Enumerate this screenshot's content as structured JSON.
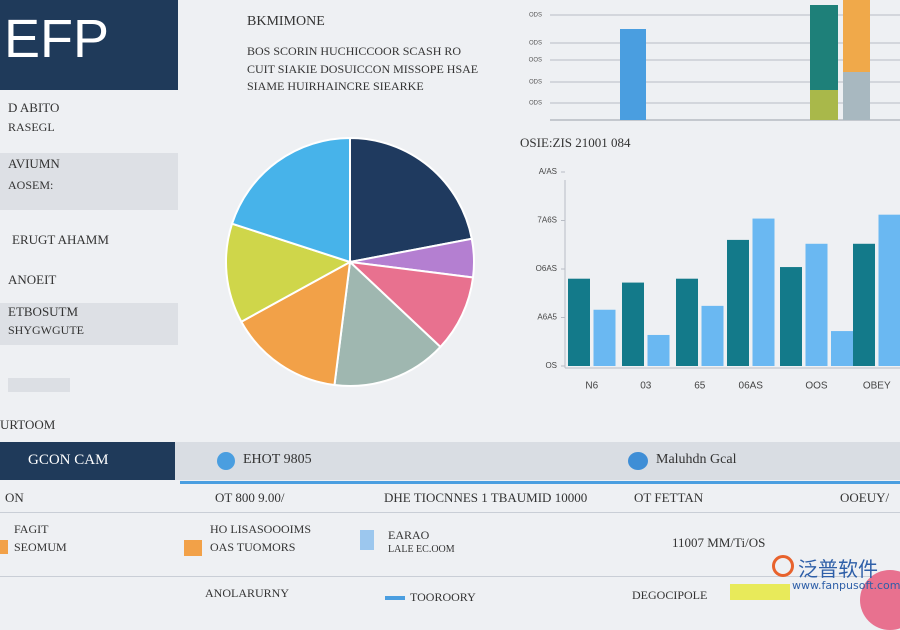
{
  "header": {
    "logo": "EFP",
    "heading": "BKMIMONE",
    "lines": [
      "BOS SCORIN HUCHICCOOR SCASH RO",
      "CUIT SIAKIE DOSUICCON MISSOPE HSAE",
      "SIAME HUIRHAINCRE SIEARKE"
    ]
  },
  "sidebar": {
    "items": [
      [
        "D ABITO",
        "RASEGL"
      ],
      [
        "AVIUMN",
        "AOSEM:"
      ],
      [
        "ERUGT AHAMM"
      ],
      [
        "ANOEIT"
      ],
      [
        "ETBOSUTM",
        "SHYGWGUTE"
      ]
    ],
    "section": "URTOOM"
  },
  "table": {
    "tabs": [
      "GCON CAM",
      "EHOT 9805",
      "Maluhdn Gcal"
    ],
    "header": [
      "ON",
      "OT 800 9.00/",
      "DHE TIOCNNES 1 TBAUMID 10000",
      "OT FETTAN",
      "OOEUY/"
    ],
    "rows": [
      [
        [
          "FAGIT",
          "SEOMUM"
        ],
        [
          "HO LISASOOOIMS",
          "OAS TUOMORS"
        ],
        [
          "EARAO",
          "LALE EC.OOM"
        ],
        [
          "11007 MM/Ti/OS"
        ]
      ],
      [
        [
          "ANOLARURNY"
        ],
        [
          "TOOROORY"
        ],
        [
          "DEGOCIPOLE"
        ]
      ]
    ]
  },
  "watermark": {
    "name": "泛普软件",
    "url": "www.fanpusoft.com"
  },
  "chart_data": [
    {
      "type": "pie",
      "values": [
        22,
        5,
        10,
        15,
        15,
        13,
        20
      ],
      "colors": [
        "#1f3a5f",
        "#b47fd1",
        "#e8718f",
        "#9fb7b0",
        "#f2a148",
        "#cfd64a",
        "#47b3ea"
      ]
    },
    {
      "type": "stacked-bar",
      "caption": "OSIE:ZIS 21001 084",
      "ylim": [
        0,
        120
      ],
      "yticks": [
        {
          "value": 17,
          "label": "ODS"
        },
        {
          "value": 38,
          "label": "ODS"
        },
        {
          "value": 60,
          "label": "OOS"
        },
        {
          "value": 77,
          "label": "ODS"
        },
        {
          "value": 105,
          "label": "ODS"
        }
      ],
      "bars": [
        {
          "segments": [
            {
              "value": 91,
              "color": "#4a9ee0"
            }
          ]
        },
        {
          "segments": [
            {
              "value": 30,
              "color": "#a9b84a"
            },
            {
              "value": 85,
              "color": "#1e8079"
            }
          ]
        },
        {
          "segments": [
            {
              "value": 48,
              "color": "#a8b8c0"
            },
            {
              "value": 75,
              "color": "#f0a94a"
            }
          ]
        }
      ]
    },
    {
      "type": "bar",
      "categories": [
        "N6",
        "03",
        "65",
        "06AS",
        "OOS",
        "OBEY"
      ],
      "ylim": [
        0,
        100
      ],
      "yticks": [
        {
          "value": 0,
          "label": "OS"
        },
        {
          "value": 25,
          "label": "A6A5"
        },
        {
          "value": 50,
          "label": "O6AS"
        },
        {
          "value": 75,
          "label": "7A6S"
        },
        {
          "value": 100,
          "label": "A/AS"
        }
      ],
      "series": [
        {
          "color": "#137a8a",
          "values": [
            45,
            43,
            45,
            65,
            51,
            63
          ]
        },
        {
          "color": "#6ab8f2",
          "values": [
            29,
            16,
            31,
            76,
            63,
            78
          ]
        },
        {
          "color": "#6ab8f2",
          "values": [
            null,
            null,
            null,
            null,
            18,
            null
          ]
        }
      ]
    }
  ]
}
